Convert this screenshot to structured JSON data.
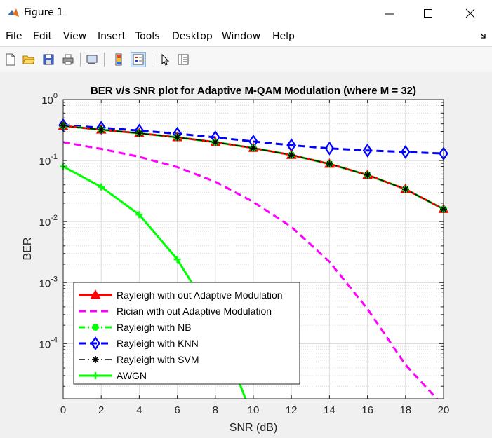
{
  "window": {
    "title": "Figure 1",
    "minimize_icon": "minimize-icon",
    "maximize_icon": "maximize-icon",
    "close_icon": "close-icon"
  },
  "menu": [
    "File",
    "Edit",
    "View",
    "Insert",
    "Tools",
    "Desktop",
    "Window",
    "Help"
  ],
  "toolbar": [
    "new-figure-icon",
    "open-file-icon",
    "save-icon",
    "print-icon",
    "link-plot-icon",
    "colorbar-icon",
    "legend-icon",
    "pointer-icon",
    "property-inspector-icon"
  ],
  "chart_data": {
    "type": "line",
    "title": "BER v/s SNR plot for Adaptive M-QAM Modulation (where M = 32)",
    "xlabel": "SNR (dB)",
    "ylabel": "BER",
    "x_ticks": [
      0,
      2,
      4,
      6,
      8,
      10,
      12,
      14,
      16,
      18,
      20
    ],
    "y_scale": "log",
    "y_ticks": [
      "10^0",
      "10^-1",
      "10^-2",
      "10^-3",
      "10^-4"
    ],
    "xlim": [
      0,
      20
    ],
    "ylim": [
      1.25e-05,
      1
    ],
    "grid": true,
    "minor_grid": true,
    "legend_position": "bottom-left",
    "x": [
      0,
      2,
      4,
      6,
      8,
      10,
      12,
      14,
      16,
      18,
      20
    ],
    "series": [
      {
        "name": "Rayleigh with out Adaptive Modulation",
        "color": "#ff0000",
        "style": "solid",
        "marker": "triangle",
        "values": [
          0.37,
          0.32,
          0.28,
          0.24,
          0.2,
          0.16,
          0.123,
          0.088,
          0.058,
          0.034,
          0.016
        ]
      },
      {
        "name": "Rician with out Adaptive Modulation",
        "color": "#ff00ff",
        "style": "dashed",
        "marker": "none",
        "values": [
          0.2,
          0.155,
          0.115,
          0.078,
          0.045,
          0.021,
          0.0082,
          0.0022,
          0.00037,
          4.5e-05,
          9.5e-06
        ]
      },
      {
        "name": "Rayleigh with NB",
        "color": "#00ff00",
        "style": "dashdot",
        "marker": "circle",
        "values": [
          0.37,
          0.32,
          0.28,
          0.24,
          0.2,
          0.16,
          0.123,
          0.088,
          0.058,
          0.034,
          0.016
        ]
      },
      {
        "name": "Rayleigh with KNN",
        "color": "#0000ff",
        "style": "dashed",
        "marker": "diamond",
        "values": [
          0.38,
          0.345,
          0.31,
          0.275,
          0.24,
          0.205,
          0.178,
          0.158,
          0.146,
          0.138,
          0.13
        ]
      },
      {
        "name": "Rayleigh with SVM",
        "color": "#000000",
        "style": "dashdot",
        "marker": "asterisk",
        "values": [
          0.37,
          0.32,
          0.28,
          0.24,
          0.2,
          0.16,
          0.123,
          0.088,
          0.058,
          0.034,
          0.016
        ]
      },
      {
        "name": "AWGN",
        "color": "#00ff00",
        "style": "solid",
        "marker": "plus",
        "values": [
          0.08,
          0.037,
          0.013,
          0.0024,
          0.00024,
          5.8e-06,
          null,
          null,
          null,
          null,
          null
        ]
      }
    ]
  }
}
